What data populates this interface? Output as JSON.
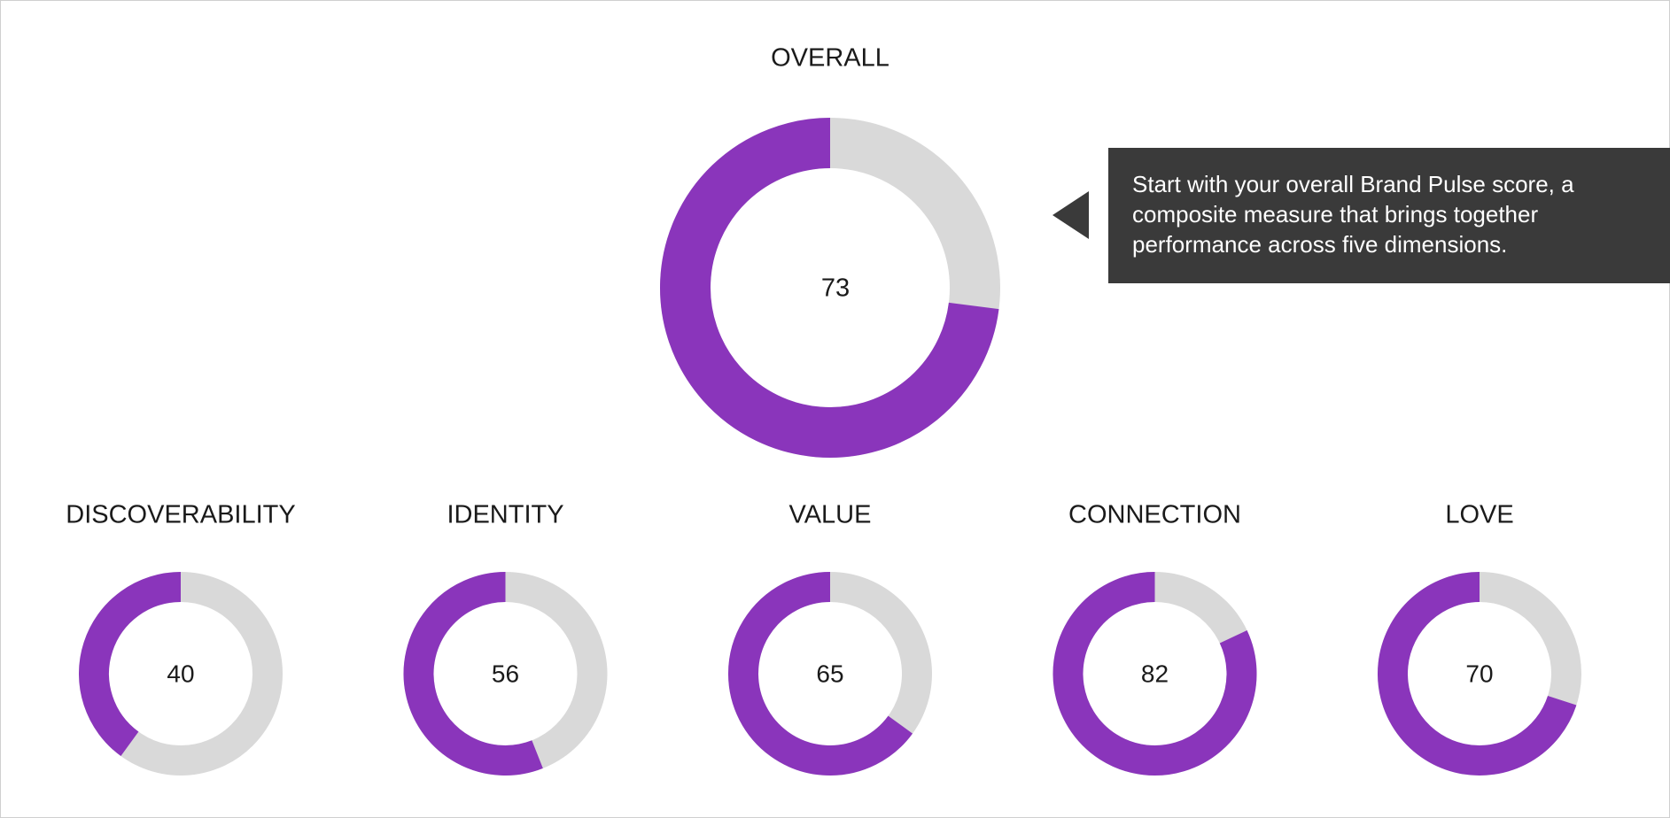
{
  "chart_data": [
    {
      "type": "donut",
      "title": "OVERALL",
      "value": 73,
      "ylim": [
        0,
        100
      ],
      "color": "#8a35bb",
      "track_color": "#d9d9d9",
      "annotation": "Start with your overall Brand Pulse score, a composite measure that brings together performance across five dimensions."
    },
    {
      "type": "donut",
      "title": "DISCOVERABILITY",
      "value": 40,
      "ylim": [
        0,
        100
      ],
      "color": "#8a35bb",
      "track_color": "#d9d9d9"
    },
    {
      "type": "donut",
      "title": "IDENTITY",
      "value": 56,
      "ylim": [
        0,
        100
      ],
      "color": "#8a35bb",
      "track_color": "#d9d9d9"
    },
    {
      "type": "donut",
      "title": "VALUE",
      "value": 65,
      "ylim": [
        0,
        100
      ],
      "color": "#8a35bb",
      "track_color": "#d9d9d9"
    },
    {
      "type": "donut",
      "title": "CONNECTION",
      "value": 82,
      "ylim": [
        0,
        100
      ],
      "color": "#8a35bb",
      "track_color": "#d9d9d9"
    },
    {
      "type": "donut",
      "title": "LOVE",
      "value": 70,
      "ylim": [
        0,
        100
      ],
      "color": "#8a35bb",
      "track_color": "#d9d9d9"
    }
  ]
}
